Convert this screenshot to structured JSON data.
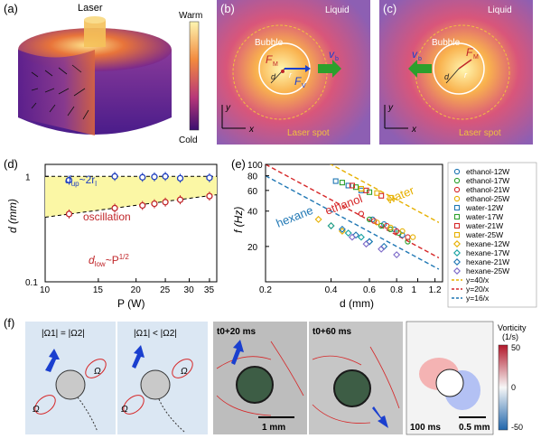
{
  "panel_a": {
    "label": "(a)",
    "laser_label": "Laser",
    "colorbar_top": "Warm",
    "colorbar_bottom": "Cold"
  },
  "panel_b": {
    "label": "(b)",
    "liquid": "Liquid",
    "bubble": "Bubble",
    "laser_spot": "Laser spot",
    "fm": "F",
    "fm_sub": "M",
    "fv": "F",
    "fv_sub": "V",
    "vb": "v",
    "vb_sub": "b",
    "r": "r",
    "d": "d",
    "axis_x": "x",
    "axis_y": "y"
  },
  "panel_c": {
    "label": "(c)",
    "liquid": "Liquid",
    "bubble": "Bubble",
    "laser_spot": "Laser spot",
    "fm": "F",
    "fm_sub": "M",
    "vb": "v",
    "vb_sub": "b",
    "r": "r",
    "d": "d",
    "axis_x": "x",
    "axis_y": "y"
  },
  "panel_d": {
    "label": "(d)",
    "ylabel": "d (mm)",
    "xlabel": "P (W)",
    "annot_up": "d",
    "annot_up_sub": "up",
    "annot_up_rest": "~2r",
    "annot_up_sub2": "l",
    "annot_osc": "oscillation",
    "annot_low": "d",
    "annot_low_sub": "low",
    "annot_low_rest": "~P",
    "annot_low_sup": "1/2",
    "xticks": [
      "10",
      "15",
      "20",
      "25",
      "30",
      "35"
    ],
    "yticks": [
      "0.1",
      "1"
    ]
  },
  "panel_e": {
    "label": "(e)",
    "ylabel": "f (Hz)",
    "xlabel": "d (mm)",
    "xticks": [
      "0.2",
      "0.4",
      "0.6",
      "0.8",
      "1",
      "1.2"
    ],
    "yticks": [
      "20",
      "40",
      "60",
      "80",
      "100"
    ],
    "lbl_water": "water",
    "lbl_ethanol": "ethanol",
    "lbl_hexane": "hexane"
  },
  "legend_e": [
    {
      "label": "ethanol-12W",
      "color": "#1f77b4",
      "marker": "circle"
    },
    {
      "label": "ethanol-17W",
      "color": "#2ca02c",
      "marker": "circle"
    },
    {
      "label": "ethanol-21W",
      "color": "#d62728",
      "marker": "circle"
    },
    {
      "label": "ethanol-25W",
      "color": "#e6b000",
      "marker": "circle"
    },
    {
      "label": "water-12W",
      "color": "#1f77b4",
      "marker": "square"
    },
    {
      "label": "water-17W",
      "color": "#2ca02c",
      "marker": "square"
    },
    {
      "label": "water-21W",
      "color": "#d62728",
      "marker": "square"
    },
    {
      "label": "water-25W",
      "color": "#e6b000",
      "marker": "square"
    },
    {
      "label": "hexane-12W",
      "color": "#e6b000",
      "marker": "diamond"
    },
    {
      "label": "hexane-17W",
      "color": "#17a2a2",
      "marker": "diamond"
    },
    {
      "label": "hexane-21W",
      "color": "#1f77b4",
      "marker": "diamond"
    },
    {
      "label": "hexane-25W",
      "color": "#7b68c8",
      "marker": "diamond"
    },
    {
      "label": "y=40/x",
      "color": "#e6b000",
      "marker": "dash"
    },
    {
      "label": "y=20/x",
      "color": "#d62728",
      "marker": "dash"
    },
    {
      "label": "y=16/x",
      "color": "#1f77b4",
      "marker": "dash"
    }
  ],
  "panel_f": {
    "label": "(f)",
    "eq_left": "|Ω1| = |Ω2|",
    "eq_right": "|Ω1| < |Ω2|",
    "omega": "Ω",
    "photo1_time": "t0+20 ms",
    "photo2_time": "t0+60 ms",
    "scale1": "1 mm",
    "vort_title": "Vorticity",
    "vort_units": "(1/s)",
    "vort_ticks": [
      "50",
      "0",
      "-50"
    ],
    "time3": "100 ms",
    "scale3": "0.5 mm"
  },
  "chart_data": [
    {
      "type": "scatter",
      "panel": "(d)",
      "xlabel": "P (W)",
      "ylabel": "d (mm)",
      "xscale": "log",
      "yscale": "log",
      "xlim": [
        10,
        37
      ],
      "ylim": [
        0.1,
        1.3
      ],
      "series": [
        {
          "name": "d_up",
          "color": "#1f3fbf",
          "x": [
            12,
            17,
            21,
            23,
            25,
            28,
            35
          ],
          "y": [
            0.92,
            1.0,
            0.98,
            0.99,
            1.0,
            0.96,
            0.97
          ]
        },
        {
          "name": "d_low",
          "color": "#c0262a",
          "x": [
            12,
            17,
            21,
            23,
            25,
            28,
            35
          ],
          "y": [
            0.44,
            0.5,
            0.53,
            0.55,
            0.57,
            0.6,
            0.65
          ]
        }
      ]
    },
    {
      "type": "scatter",
      "panel": "(e)",
      "xlabel": "d (mm)",
      "ylabel": "f (Hz)",
      "xscale": "log",
      "yscale": "log",
      "xlim": [
        0.2,
        1.3
      ],
      "ylim": [
        10,
        100
      ],
      "series": [
        {
          "name": "ethanol-12W",
          "x": [
            0.62,
            0.7,
            0.78,
            0.85
          ],
          "y": [
            34,
            31,
            28,
            25
          ]
        },
        {
          "name": "ethanol-17W",
          "x": [
            0.6,
            0.68,
            0.75,
            0.82,
            0.9
          ],
          "y": [
            34,
            30,
            28,
            26,
            22
          ]
        },
        {
          "name": "ethanol-21W",
          "x": [
            0.55,
            0.63,
            0.72,
            0.8,
            0.9
          ],
          "y": [
            38,
            33,
            30,
            27,
            24
          ]
        },
        {
          "name": "ethanol-25W",
          "x": [
            0.65,
            0.75,
            0.85,
            0.95
          ],
          "y": [
            32,
            29,
            27,
            24
          ]
        },
        {
          "name": "water-12W",
          "x": [
            0.42,
            0.48,
            0.55
          ],
          "y": [
            72,
            66,
            60
          ]
        },
        {
          "name": "water-17W",
          "x": [
            0.45,
            0.52,
            0.6
          ],
          "y": [
            70,
            64,
            58
          ]
        },
        {
          "name": "water-21W",
          "x": [
            0.5,
            0.58,
            0.68
          ],
          "y": [
            66,
            60,
            54
          ]
        },
        {
          "name": "water-25W",
          "x": [
            0.55,
            0.65,
            0.75
          ],
          "y": [
            62,
            57,
            52
          ]
        },
        {
          "name": "hexane-12W",
          "x": [
            0.35,
            0.4,
            0.45
          ],
          "y": [
            34,
            30,
            27
          ]
        },
        {
          "name": "hexane-17W",
          "x": [
            0.4,
            0.48,
            0.55,
            0.6
          ],
          "y": [
            30,
            26,
            24,
            22
          ]
        },
        {
          "name": "hexane-21W",
          "x": [
            0.45,
            0.52,
            0.6,
            0.7
          ],
          "y": [
            28,
            25,
            22,
            20
          ]
        },
        {
          "name": "hexane-25W",
          "x": [
            0.5,
            0.58,
            0.68,
            0.8
          ],
          "y": [
            24,
            21,
            19,
            17
          ]
        }
      ],
      "fits": [
        {
          "name": "y=40/x",
          "k": 40,
          "color": "#e6b000"
        },
        {
          "name": "y=20/x",
          "k": 20,
          "color": "#d62728"
        },
        {
          "name": "y=16/x",
          "k": 16,
          "color": "#1f77b4"
        }
      ]
    }
  ]
}
